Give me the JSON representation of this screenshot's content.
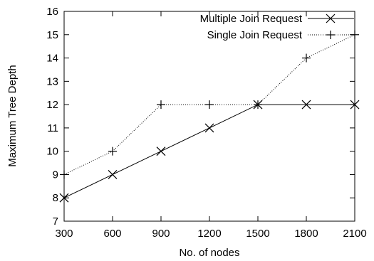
{
  "chart_data": {
    "type": "line",
    "xlabel": "No. of nodes",
    "ylabel": "Maximum Tree Depth",
    "x": [
      300,
      600,
      900,
      1200,
      1500,
      1800,
      2100
    ],
    "xlim": [
      300,
      2100
    ],
    "ylim": [
      7,
      16
    ],
    "xticks": [
      "300",
      "600",
      "900",
      "1200",
      "1500",
      "1800",
      "2100"
    ],
    "yticks": [
      "7",
      "8",
      "9",
      "10",
      "11",
      "12",
      "13",
      "14",
      "15",
      "16"
    ],
    "grid": false,
    "legend_position": "top-right",
    "series": [
      {
        "name": "Multiple Join Request",
        "marker": "x",
        "line": "solid",
        "color": "#000000",
        "values": [
          8,
          9,
          10,
          11,
          12,
          12,
          12
        ]
      },
      {
        "name": "Single Join Request",
        "marker": "+",
        "line": "dotted",
        "color": "#000000",
        "values": [
          9,
          10,
          12,
          12,
          12,
          14,
          15
        ]
      }
    ]
  }
}
